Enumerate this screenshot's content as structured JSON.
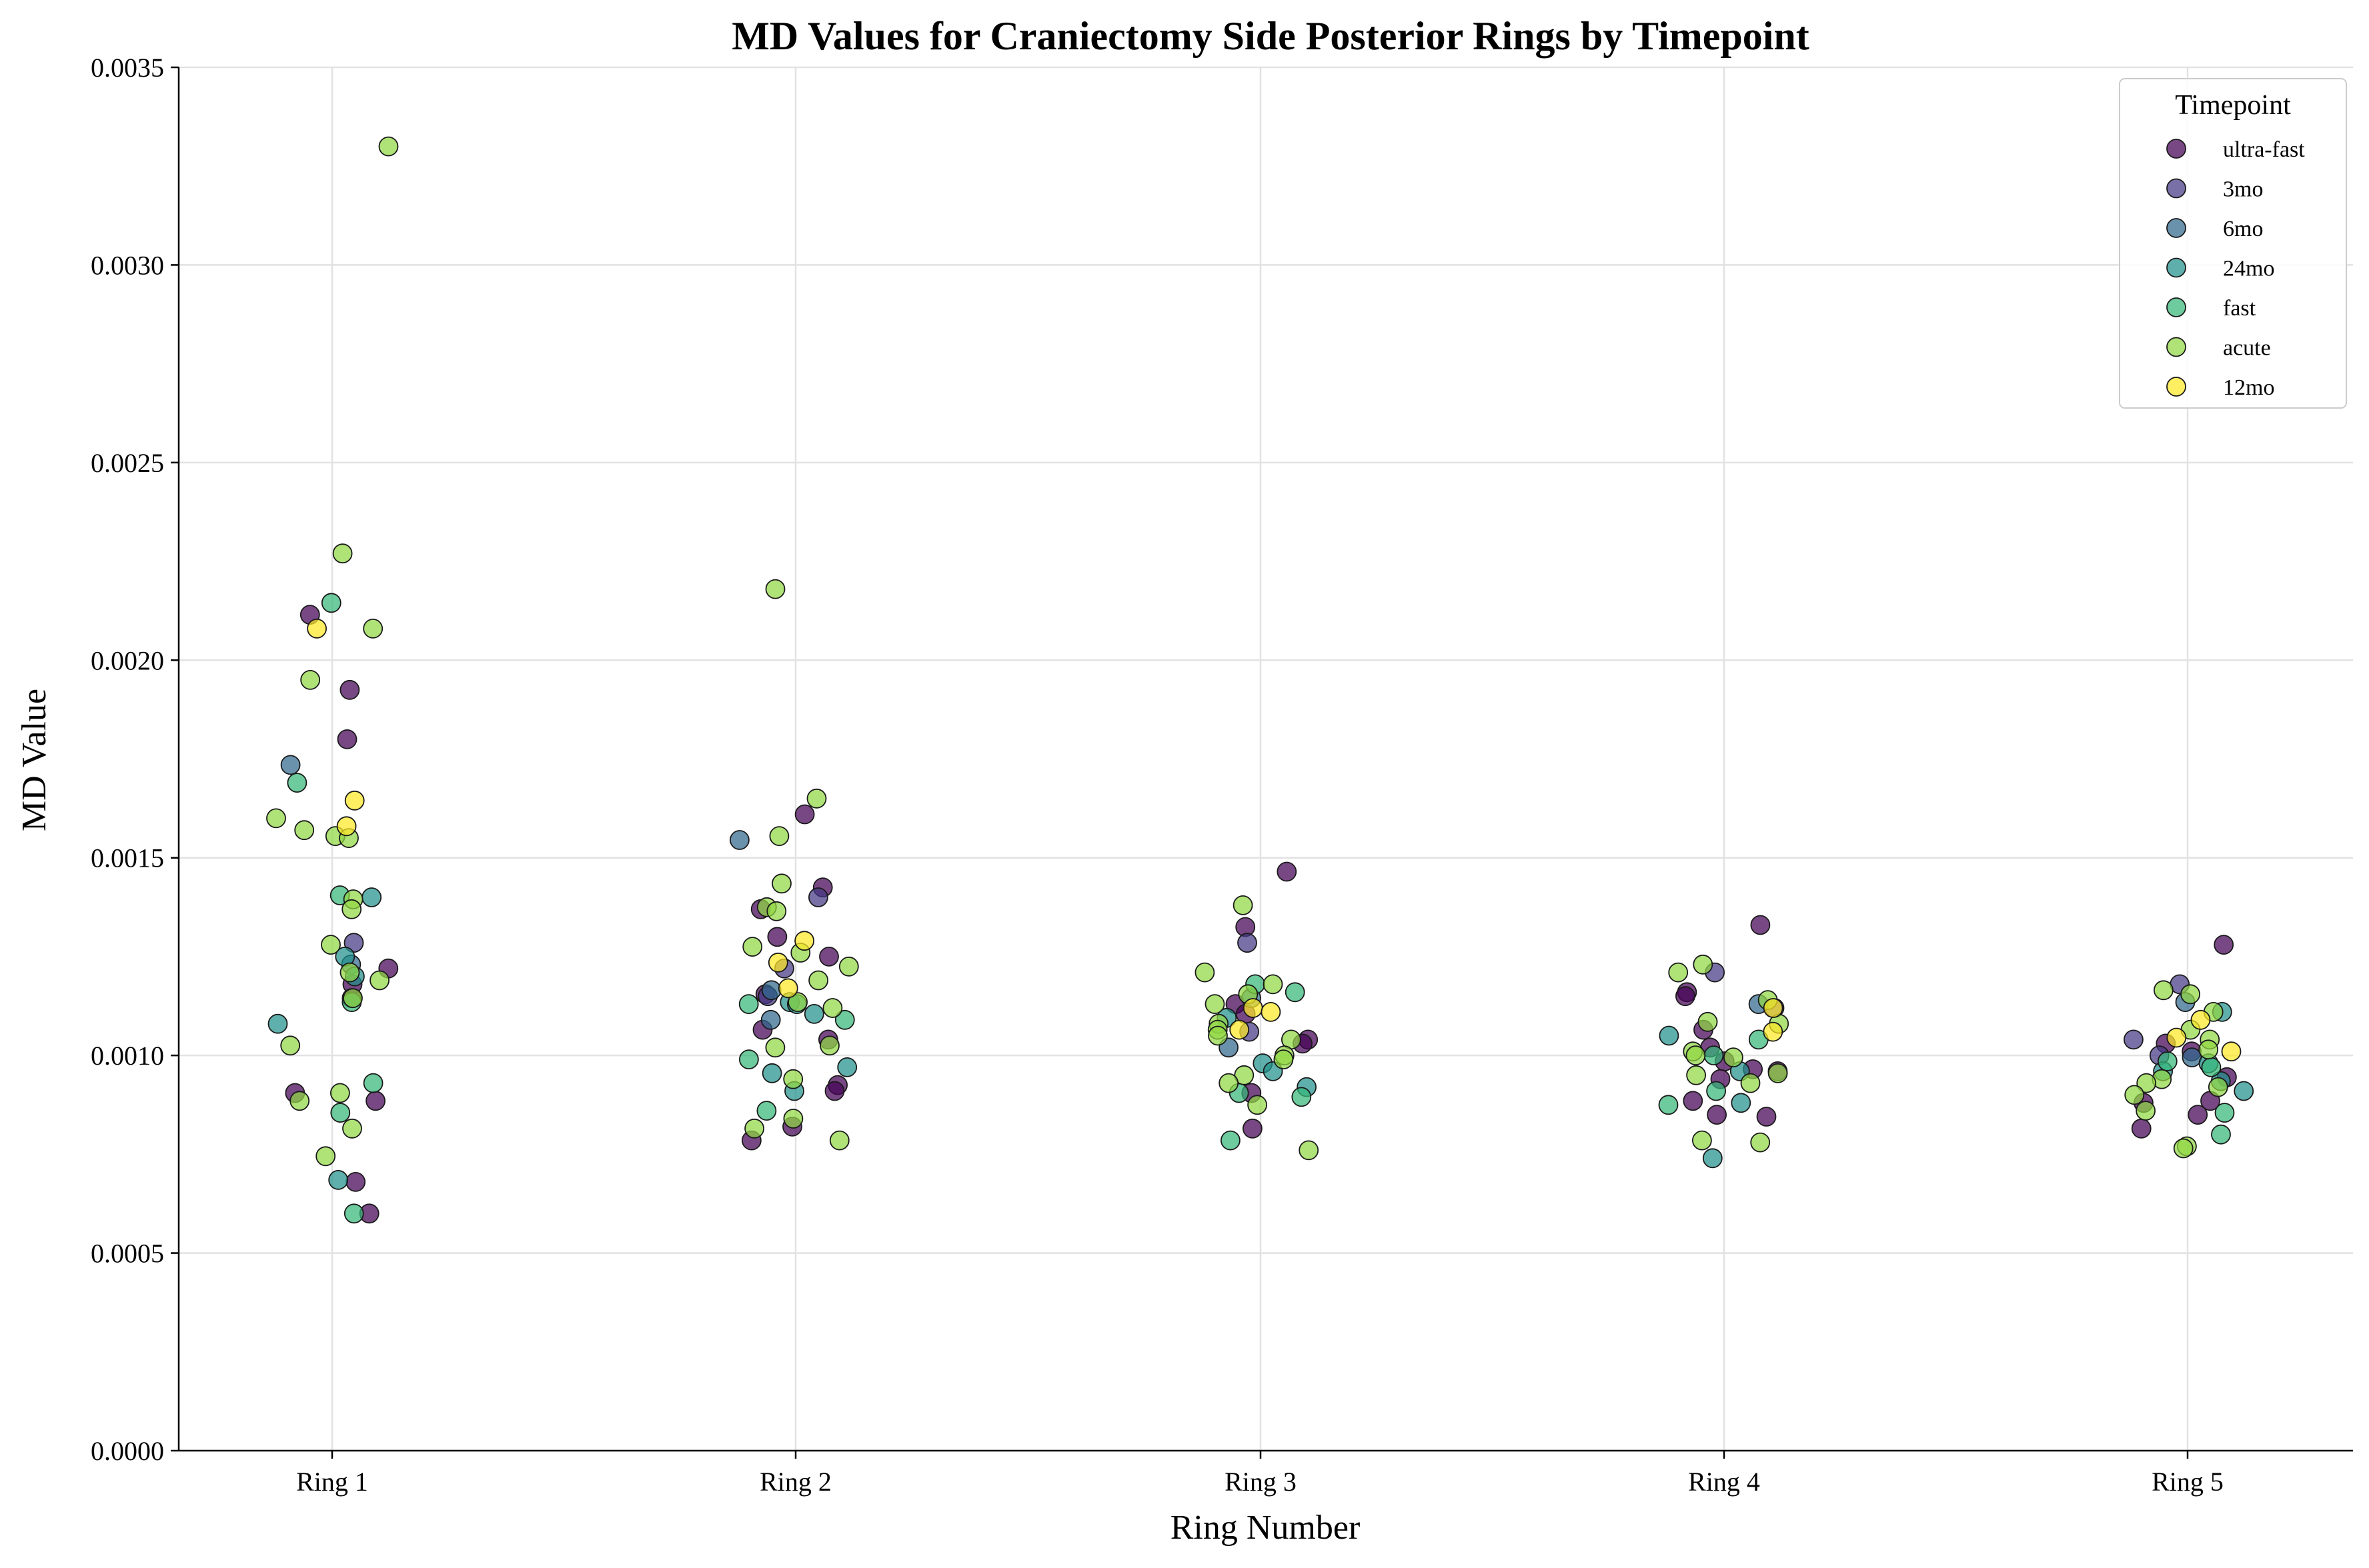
{
  "chart_data": {
    "type": "scatter",
    "title": "MD Values for Craniectomy Side Posterior Rings by Timepoint",
    "xlabel": "Ring Number",
    "ylabel": "MD Value",
    "categories": [
      "Ring 1",
      "Ring 2",
      "Ring 3",
      "Ring 4",
      "Ring 5"
    ],
    "ylim": [
      0,
      0.0035
    ],
    "yticks": [
      "0.0000",
      "0.0005",
      "0.0010",
      "0.0015",
      "0.0020",
      "0.0025",
      "0.0030",
      "0.0035"
    ],
    "grid": true,
    "legend": {
      "title": "Timepoint",
      "position": "top-right"
    },
    "series": [
      {
        "name": "ultra-fast",
        "color": "#440154",
        "points": [
          [
            1,
            0.001925
          ],
          [
            1,
            0.002115
          ],
          [
            1,
            0.0018
          ],
          [
            1,
            0.00122
          ],
          [
            1,
            0.00118
          ],
          [
            1,
            0.001145
          ],
          [
            1,
            0.000905
          ],
          [
            1,
            0.000885
          ],
          [
            1,
            0.00068
          ],
          [
            1,
            0.0006
          ],
          [
            2,
            0.001425
          ],
          [
            2,
            0.0013
          ],
          [
            2,
            0.00125
          ],
          [
            2,
            0.00137
          ],
          [
            2,
            0.00161
          ],
          [
            2,
            0.001155
          ],
          [
            2,
            0.001065
          ],
          [
            2,
            0.00104
          ],
          [
            2,
            0.000925
          ],
          [
            2,
            0.00091
          ],
          [
            2,
            0.000785
          ],
          [
            2,
            0.00082
          ],
          [
            3,
            0.001465
          ],
          [
            3,
            0.001325
          ],
          [
            3,
            0.00113
          ],
          [
            3,
            0.001105
          ],
          [
            3,
            0.00104
          ],
          [
            3,
            0.00103
          ],
          [
            3,
            0.000905
          ],
          [
            3,
            0.000815
          ],
          [
            4,
            0.00133
          ],
          [
            4,
            0.00116
          ],
          [
            4,
            0.00115
          ],
          [
            4,
            0.001065
          ],
          [
            4,
            0.00102
          ],
          [
            4,
            0.000985
          ],
          [
            4,
            0.00096
          ],
          [
            4,
            0.00094
          ],
          [
            4,
            0.000965
          ],
          [
            4,
            0.000885
          ],
          [
            4,
            0.00085
          ],
          [
            4,
            0.000845
          ],
          [
            5,
            0.00128
          ],
          [
            5,
            0.00103
          ],
          [
            5,
            0.00101
          ],
          [
            5,
            0.000945
          ],
          [
            5,
            0.000885
          ],
          [
            5,
            0.00088
          ],
          [
            5,
            0.00085
          ],
          [
            5,
            0.000815
          ]
        ]
      },
      {
        "name": "3mo",
        "color": "#443983",
        "points": [
          [
            1,
            0.001285
          ],
          [
            2,
            0.00122
          ],
          [
            2,
            0.0014
          ],
          [
            2,
            0.00115
          ],
          [
            3,
            0.001285
          ],
          [
            3,
            0.00106
          ],
          [
            4,
            0.00121
          ],
          [
            4,
            0.00112
          ],
          [
            5,
            0.00118
          ],
          [
            5,
            0.00104
          ],
          [
            5,
            0.001
          ]
        ]
      },
      {
        "name": "6mo",
        "color": "#31688e",
        "points": [
          [
            1,
            0.001735
          ],
          [
            1,
            0.00123
          ],
          [
            2,
            0.001545
          ],
          [
            2,
            0.001165
          ],
          [
            2,
            0.00109
          ],
          [
            3,
            0.001145
          ],
          [
            3,
            0.00102
          ],
          [
            4,
            0.00113
          ],
          [
            5,
            0.001135
          ],
          [
            5,
            0.000995
          ]
        ]
      },
      {
        "name": "24mo",
        "color": "#21918c",
        "points": [
          [
            1,
            0.0014
          ],
          [
            1,
            0.00125
          ],
          [
            1,
            0.0012
          ],
          [
            1,
            0.00108
          ],
          [
            1,
            0.000685
          ],
          [
            2,
            0.001135
          ],
          [
            2,
            0.00113
          ],
          [
            2,
            0.001105
          ],
          [
            2,
            0.000955
          ],
          [
            2,
            0.00091
          ],
          [
            2,
            0.00097
          ],
          [
            3,
            0.001095
          ],
          [
            3,
            0.00098
          ],
          [
            3,
            0.00092
          ],
          [
            3,
            0.00096
          ],
          [
            4,
            0.00105
          ],
          [
            4,
            0.00096
          ],
          [
            4,
            0.00088
          ],
          [
            4,
            0.00074
          ],
          [
            5,
            0.00111
          ],
          [
            5,
            0.00098
          ],
          [
            5,
            0.00096
          ],
          [
            5,
            0.000935
          ],
          [
            5,
            0.00091
          ]
        ]
      },
      {
        "name": "fast",
        "color": "#35b779",
        "points": [
          [
            1,
            0.002145
          ],
          [
            1,
            0.00169
          ],
          [
            1,
            0.001405
          ],
          [
            1,
            0.001135
          ],
          [
            1,
            0.00093
          ],
          [
            1,
            0.000855
          ],
          [
            1,
            0.0006
          ],
          [
            2,
            0.00113
          ],
          [
            2,
            0.00109
          ],
          [
            2,
            0.00099
          ],
          [
            2,
            0.00086
          ],
          [
            3,
            0.00118
          ],
          [
            3,
            0.00116
          ],
          [
            3,
            0.000905
          ],
          [
            3,
            0.000895
          ],
          [
            3,
            0.000785
          ],
          [
            4,
            0.00104
          ],
          [
            4,
            0.001
          ],
          [
            4,
            0.00091
          ],
          [
            4,
            0.000875
          ],
          [
            5,
            0.000985
          ],
          [
            5,
            0.00097
          ],
          [
            5,
            0.000855
          ],
          [
            5,
            0.0008
          ]
        ]
      },
      {
        "name": "acute",
        "color": "#90d743",
        "points": [
          [
            1,
            0.0033
          ],
          [
            1,
            0.00227
          ],
          [
            1,
            0.00208
          ],
          [
            1,
            0.00195
          ],
          [
            1,
            0.0016
          ],
          [
            1,
            0.00157
          ],
          [
            1,
            0.001555
          ],
          [
            1,
            0.00155
          ],
          [
            1,
            0.001395
          ],
          [
            1,
            0.00137
          ],
          [
            1,
            0.00128
          ],
          [
            1,
            0.00121
          ],
          [
            1,
            0.00119
          ],
          [
            1,
            0.001145
          ],
          [
            1,
            0.001025
          ],
          [
            1,
            0.000905
          ],
          [
            1,
            0.000885
          ],
          [
            1,
            0.000815
          ],
          [
            1,
            0.000745
          ],
          [
            2,
            0.00218
          ],
          [
            2,
            0.00165
          ],
          [
            2,
            0.001555
          ],
          [
            2,
            0.001435
          ],
          [
            2,
            0.001375
          ],
          [
            2,
            0.001365
          ],
          [
            2,
            0.001275
          ],
          [
            2,
            0.00126
          ],
          [
            2,
            0.001225
          ],
          [
            2,
            0.00119
          ],
          [
            2,
            0.001135
          ],
          [
            2,
            0.00112
          ],
          [
            2,
            0.001025
          ],
          [
            2,
            0.00102
          ],
          [
            2,
            0.00094
          ],
          [
            2,
            0.00084
          ],
          [
            2,
            0.000815
          ],
          [
            2,
            0.000785
          ],
          [
            3,
            0.00138
          ],
          [
            3,
            0.00121
          ],
          [
            3,
            0.00118
          ],
          [
            3,
            0.001155
          ],
          [
            3,
            0.00113
          ],
          [
            3,
            0.00108
          ],
          [
            3,
            0.001065
          ],
          [
            3,
            0.00105
          ],
          [
            3,
            0.00104
          ],
          [
            3,
            0.001
          ],
          [
            3,
            0.00099
          ],
          [
            3,
            0.00095
          ],
          [
            3,
            0.00093
          ],
          [
            3,
            0.000875
          ],
          [
            3,
            0.00076
          ],
          [
            4,
            0.00123
          ],
          [
            4,
            0.00121
          ],
          [
            4,
            0.00114
          ],
          [
            4,
            0.001085
          ],
          [
            4,
            0.00108
          ],
          [
            4,
            0.00101
          ],
          [
            4,
            0.001
          ],
          [
            4,
            0.000995
          ],
          [
            4,
            0.000955
          ],
          [
            4,
            0.00095
          ],
          [
            4,
            0.00093
          ],
          [
            4,
            0.000785
          ],
          [
            4,
            0.00078
          ],
          [
            5,
            0.001165
          ],
          [
            5,
            0.001155
          ],
          [
            5,
            0.00111
          ],
          [
            5,
            0.001065
          ],
          [
            5,
            0.00104
          ],
          [
            5,
            0.001015
          ],
          [
            5,
            0.00094
          ],
          [
            5,
            0.00093
          ],
          [
            5,
            0.00092
          ],
          [
            5,
            0.0009
          ],
          [
            5,
            0.00086
          ],
          [
            5,
            0.00077
          ],
          [
            5,
            0.000765
          ]
        ]
      },
      {
        "name": "12mo",
        "color": "#fde725",
        "points": [
          [
            1,
            0.00208
          ],
          [
            1,
            0.001645
          ],
          [
            1,
            0.00158
          ],
          [
            2,
            0.00129
          ],
          [
            2,
            0.001235
          ],
          [
            2,
            0.00117
          ],
          [
            3,
            0.00112
          ],
          [
            3,
            0.00111
          ],
          [
            3,
            0.001065
          ],
          [
            4,
            0.00112
          ],
          [
            4,
            0.00106
          ],
          [
            5,
            0.00109
          ],
          [
            5,
            0.001045
          ],
          [
            5,
            0.00101
          ]
        ]
      }
    ]
  }
}
